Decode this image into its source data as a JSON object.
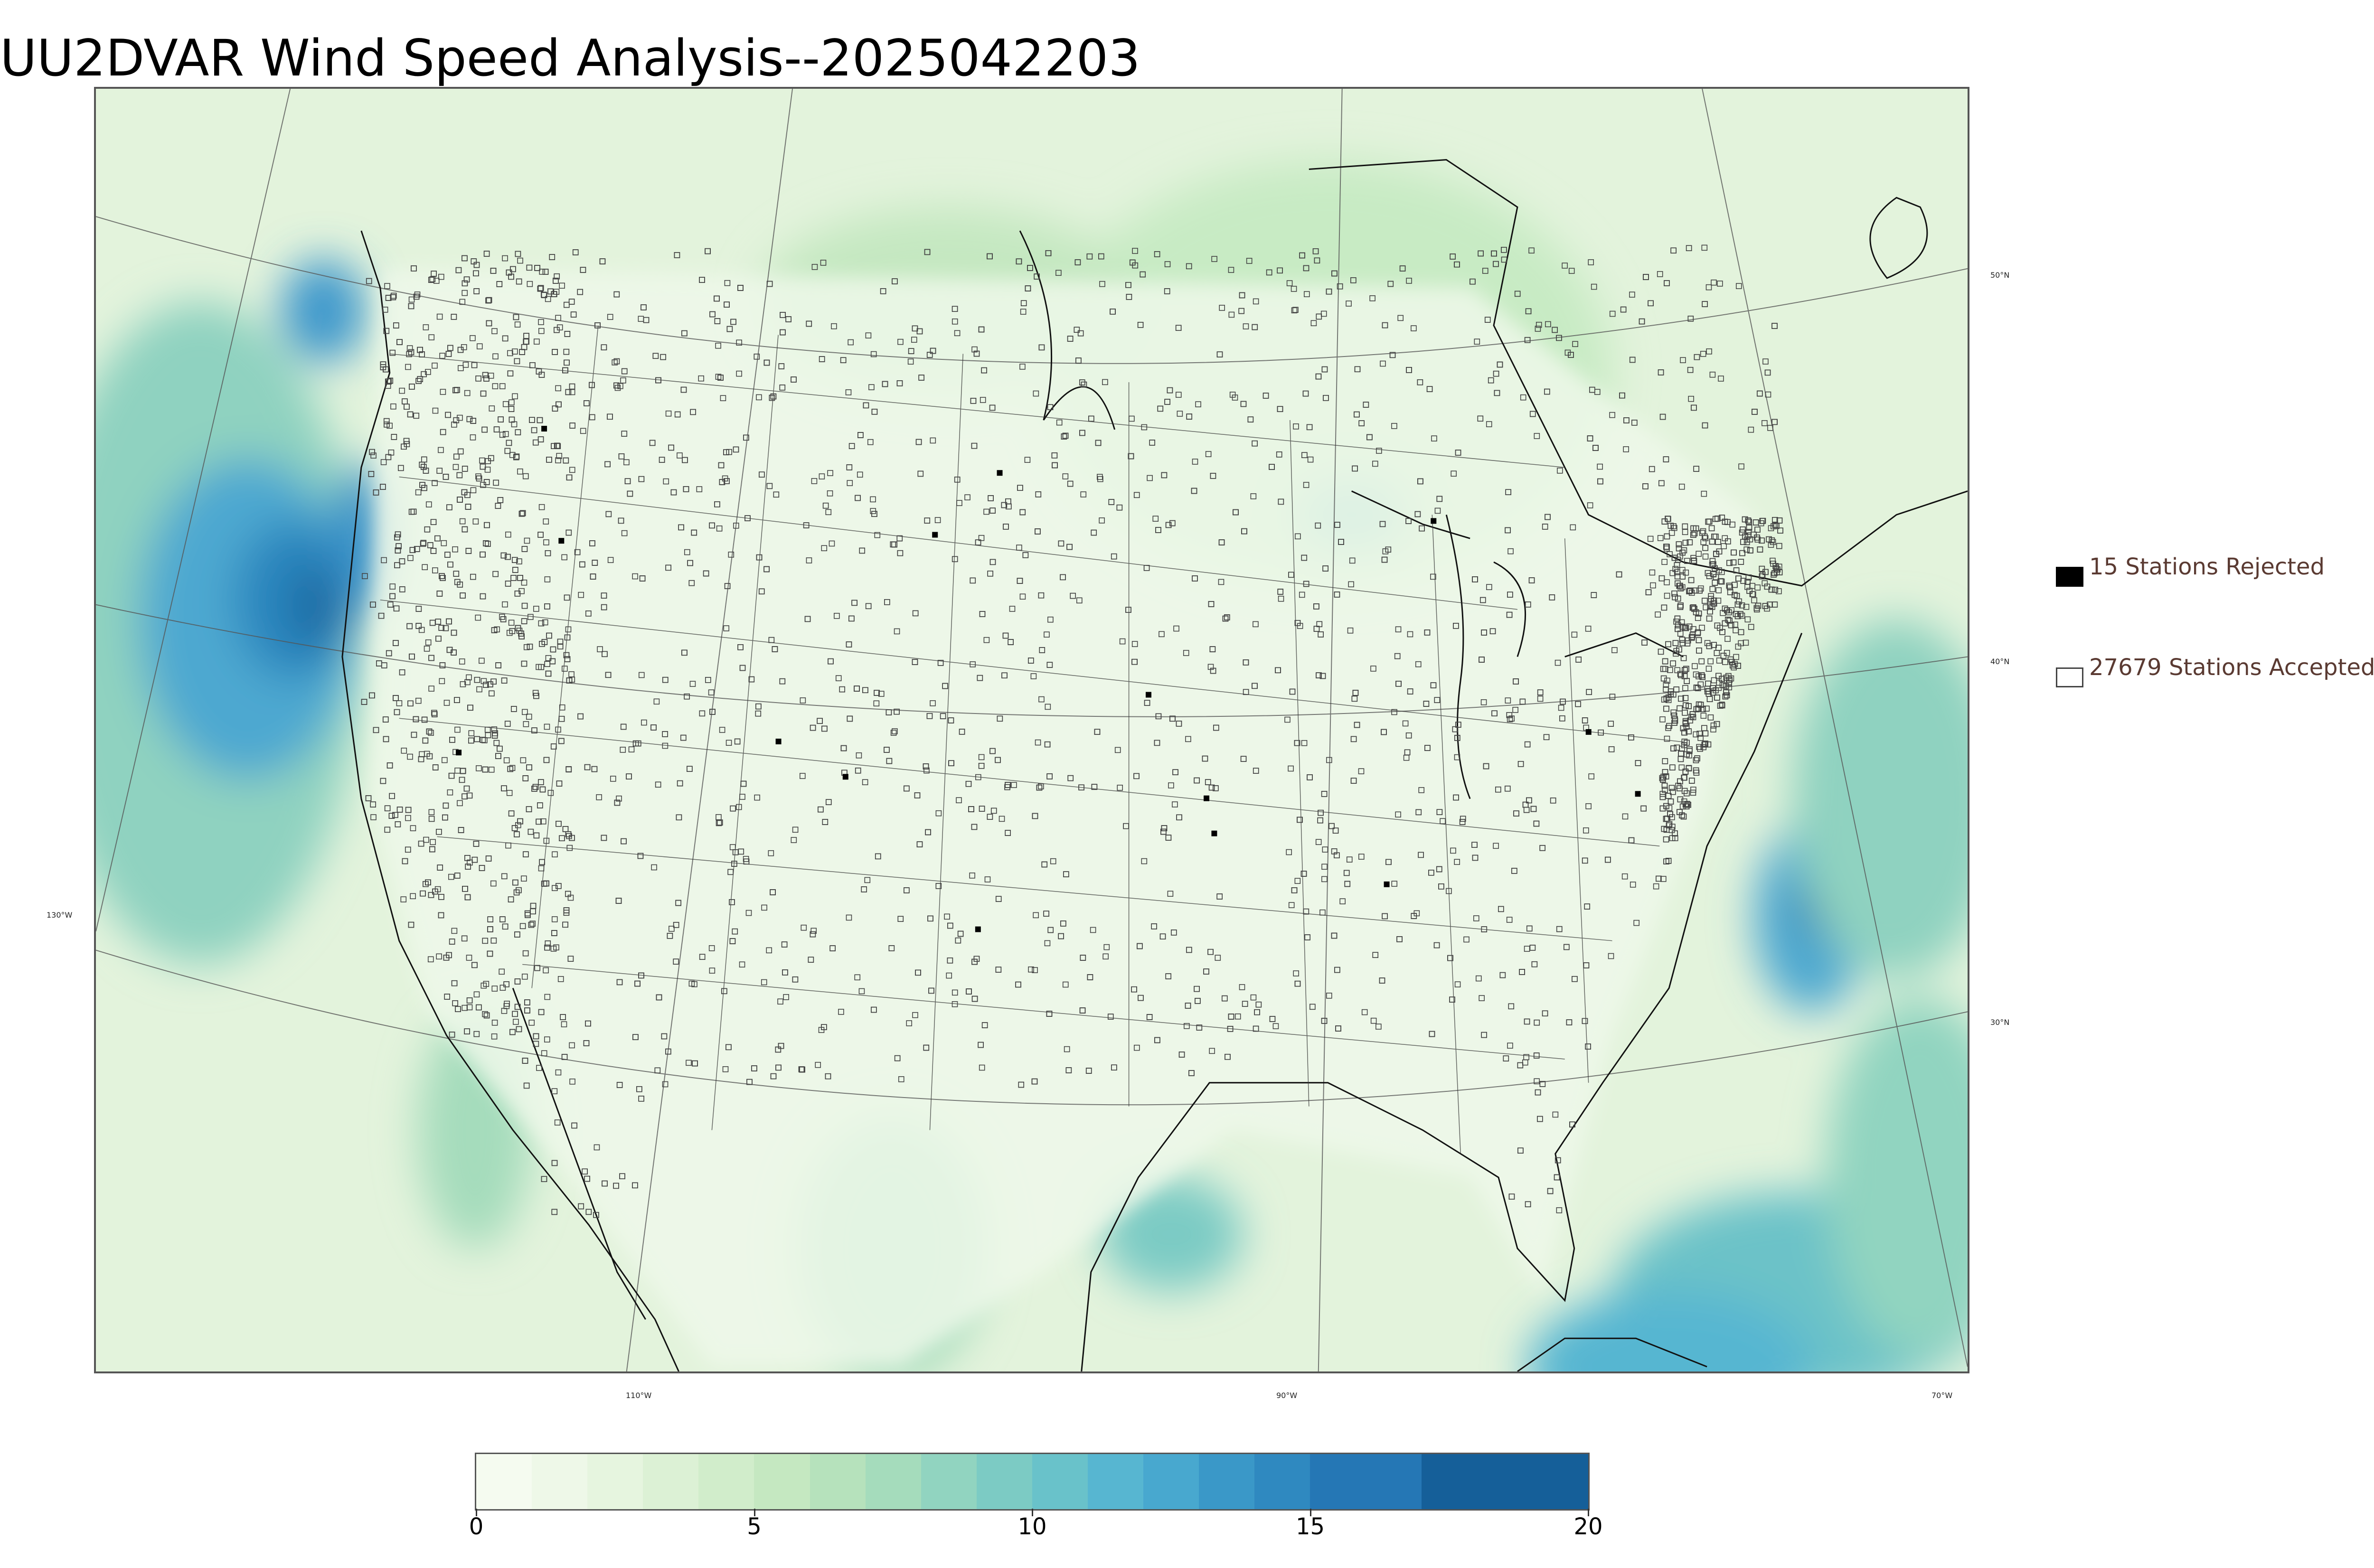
{
  "title": "UU2DVAR Wind Speed Analysis--2025042203",
  "map": {
    "lon_labels": [
      "130°W",
      "110°W",
      "90°W",
      "70°W"
    ],
    "lat_labels": [
      "50°N",
      "40°N",
      "30°N"
    ],
    "colors": {
      "land_base": "#e6f4df",
      "border": "#000000",
      "station_edge": "#444444"
    }
  },
  "legend": {
    "rejected": {
      "label": "15 Stations Rejected",
      "count": 15,
      "color": "#000000"
    },
    "accepted": {
      "label": "27679 Stations Accepted",
      "count": 27679,
      "color": "#ffffff"
    }
  },
  "colorbar": {
    "min": 0,
    "max": 20,
    "tick_labels": [
      "0",
      "5",
      "10",
      "15",
      "20"
    ],
    "bins": [
      {
        "from": 0,
        "to": 1,
        "color": "#f5fbf0"
      },
      {
        "from": 1,
        "to": 2,
        "color": "#eef8e8"
      },
      {
        "from": 2,
        "to": 3,
        "color": "#e6f5df"
      },
      {
        "from": 3,
        "to": 4,
        "color": "#dcf1d5"
      },
      {
        "from": 4,
        "to": 5,
        "color": "#d1edcb"
      },
      {
        "from": 5,
        "to": 6,
        "color": "#c5e8c1"
      },
      {
        "from": 6,
        "to": 7,
        "color": "#b6e2bc"
      },
      {
        "from": 7,
        "to": 8,
        "color": "#a5dcbc"
      },
      {
        "from": 8,
        "to": 9,
        "color": "#91d4c0"
      },
      {
        "from": 9,
        "to": 10,
        "color": "#7ccbc4"
      },
      {
        "from": 10,
        "to": 11,
        "color": "#69c2ca"
      },
      {
        "from": 11,
        "to": 12,
        "color": "#57b6d1"
      },
      {
        "from": 12,
        "to": 13,
        "color": "#48a8cf"
      },
      {
        "from": 13,
        "to": 14,
        "color": "#3a98c8"
      },
      {
        "from": 14,
        "to": 15,
        "color": "#2f89c0"
      },
      {
        "from": 15,
        "to": 17,
        "color": "#2577b5"
      },
      {
        "from": 17,
        "to": 20,
        "color": "#155f99"
      }
    ]
  }
}
